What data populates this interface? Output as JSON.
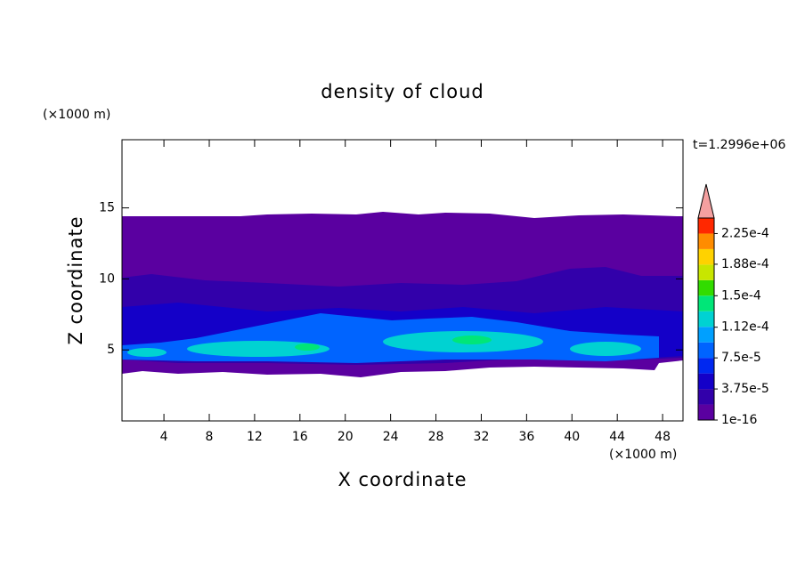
{
  "chart_data": {
    "type": "contour",
    "title": "density of cloud",
    "x_label": "X coordinate",
    "y_label": "Z coordinate",
    "x_unit": "(×1000 m)",
    "y_unit": "(×1000 m)",
    "annotation": "t=1.2996e+06",
    "xlim": [
      0.3,
      49.8
    ],
    "ylim": [
      0,
      19.8
    ],
    "xticks": [
      4,
      8,
      12,
      16,
      20,
      24,
      28,
      32,
      36,
      40,
      44,
      48
    ],
    "yticks": [
      5,
      10,
      15
    ],
    "colorbar": {
      "levels": [
        1e-16,
        1.875e-05,
        3.75e-05,
        5.625e-05,
        7.5e-05,
        9.375e-05,
        0.0001125,
        0.00013125,
        0.00015,
        0.00016875,
        0.0001875,
        0.00020625,
        0.000225,
        0.00024375
      ],
      "colors": [
        "#5a00a0",
        "#3200aa",
        "#1400c8",
        "#0028f0",
        "#0064ff",
        "#00a0ff",
        "#00d2d2",
        "#00e678",
        "#32dc00",
        "#c8e600",
        "#ffd200",
        "#ff8c00",
        "#ff2800"
      ],
      "extend_color": "#f4a0a0",
      "ticks": [
        {
          "value": 1e-16,
          "label": "1e-16"
        },
        {
          "value": 3.75e-05,
          "label": "3.75e-5"
        },
        {
          "value": 7.5e-05,
          "label": "7.5e-5"
        },
        {
          "value": 0.000112,
          "label": "1.12e-4"
        },
        {
          "value": 0.00015,
          "label": "1.5e-4"
        },
        {
          "value": 0.000188,
          "label": "1.88e-4"
        },
        {
          "value": 0.000225,
          "label": "2.25e-4"
        }
      ]
    }
  }
}
